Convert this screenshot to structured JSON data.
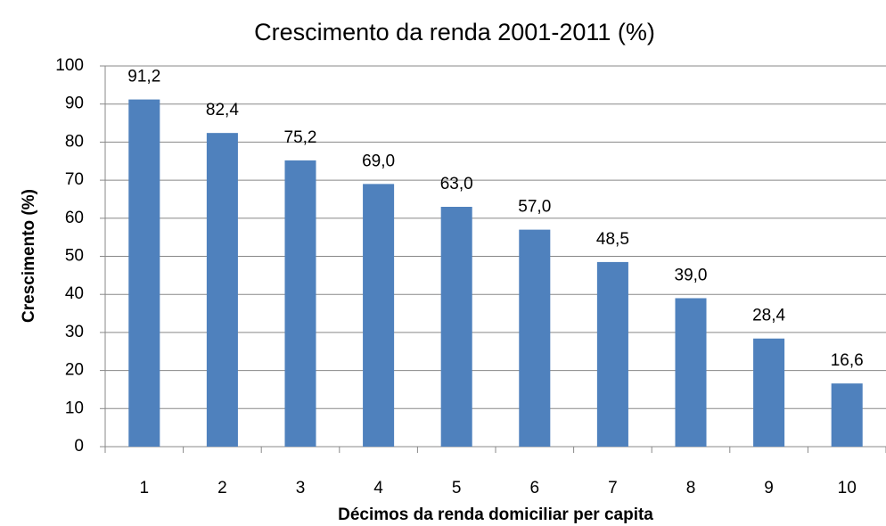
{
  "chart_data": {
    "type": "bar",
    "title": "Crescimento da renda 2001-2011  (%)",
    "x_label": "Décimos da renda domiciliar per capita",
    "y_label": "Crescimento (%)",
    "categories": [
      "1",
      "2",
      "3",
      "4",
      "5",
      "6",
      "7",
      "8",
      "9",
      "10"
    ],
    "values": [
      91.2,
      82.4,
      75.2,
      69.0,
      63.0,
      57.0,
      48.5,
      39.0,
      28.4,
      16.6
    ],
    "value_labels": [
      "91,2",
      "82,4",
      "75,2",
      "69,0",
      "63,0",
      "57,0",
      "48,5",
      "39,0",
      "28,4",
      "16,6"
    ],
    "color": "#4f81bd",
    "ylim": [
      0,
      100
    ],
    "yticks": [
      0,
      10,
      20,
      30,
      40,
      50,
      60,
      70,
      80,
      90,
      100
    ],
    "grid": true
  }
}
